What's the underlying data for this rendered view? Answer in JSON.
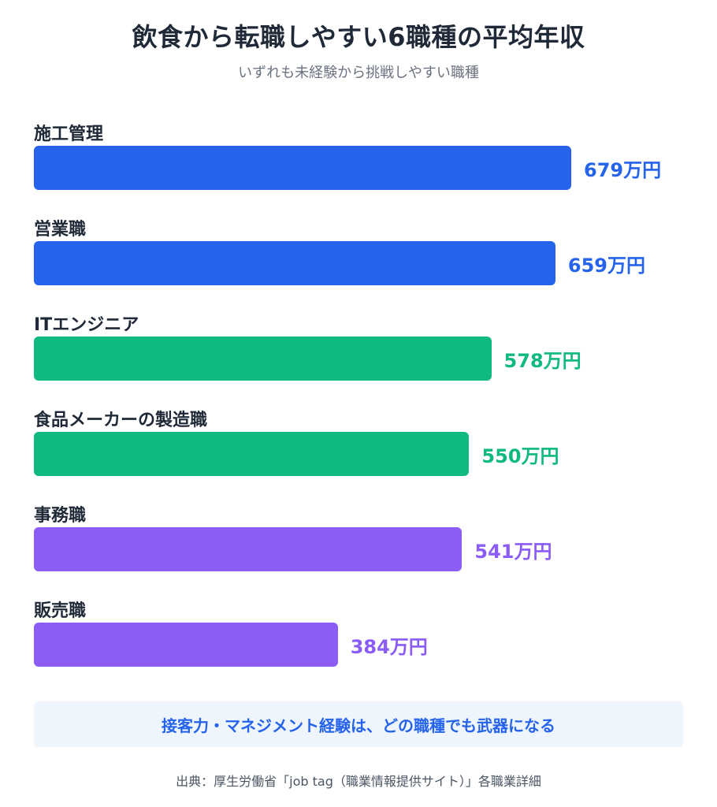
{
  "header": {
    "title": "飲食から転職しやすい6職種の平均年収",
    "subtitle": "いずれも未経験から挑戦しやすい職種"
  },
  "chart_data": {
    "type": "bar",
    "orientation": "horizontal",
    "categories": [
      "施工管理",
      "営業職",
      "ITエンジニア",
      "食品メーカーの製造職",
      "事務職",
      "販売職"
    ],
    "values": [
      679,
      659,
      578,
      550,
      541,
      384
    ],
    "value_labels": [
      "679万円",
      "659万円",
      "578万円",
      "550万円",
      "541万円",
      "384万円"
    ],
    "colors": [
      "#2563eb",
      "#2563eb",
      "#10b981",
      "#10b981",
      "#8b5cf6",
      "#8b5cf6"
    ],
    "unit": "万円",
    "grid": false,
    "legend": "none"
  },
  "callout": {
    "text": "接客力・マネジメント経験は、どの職種でも武器になる"
  },
  "source": {
    "text": "出典：厚生労働省「job tag（職業情報提供サイト）」各職業詳細"
  }
}
